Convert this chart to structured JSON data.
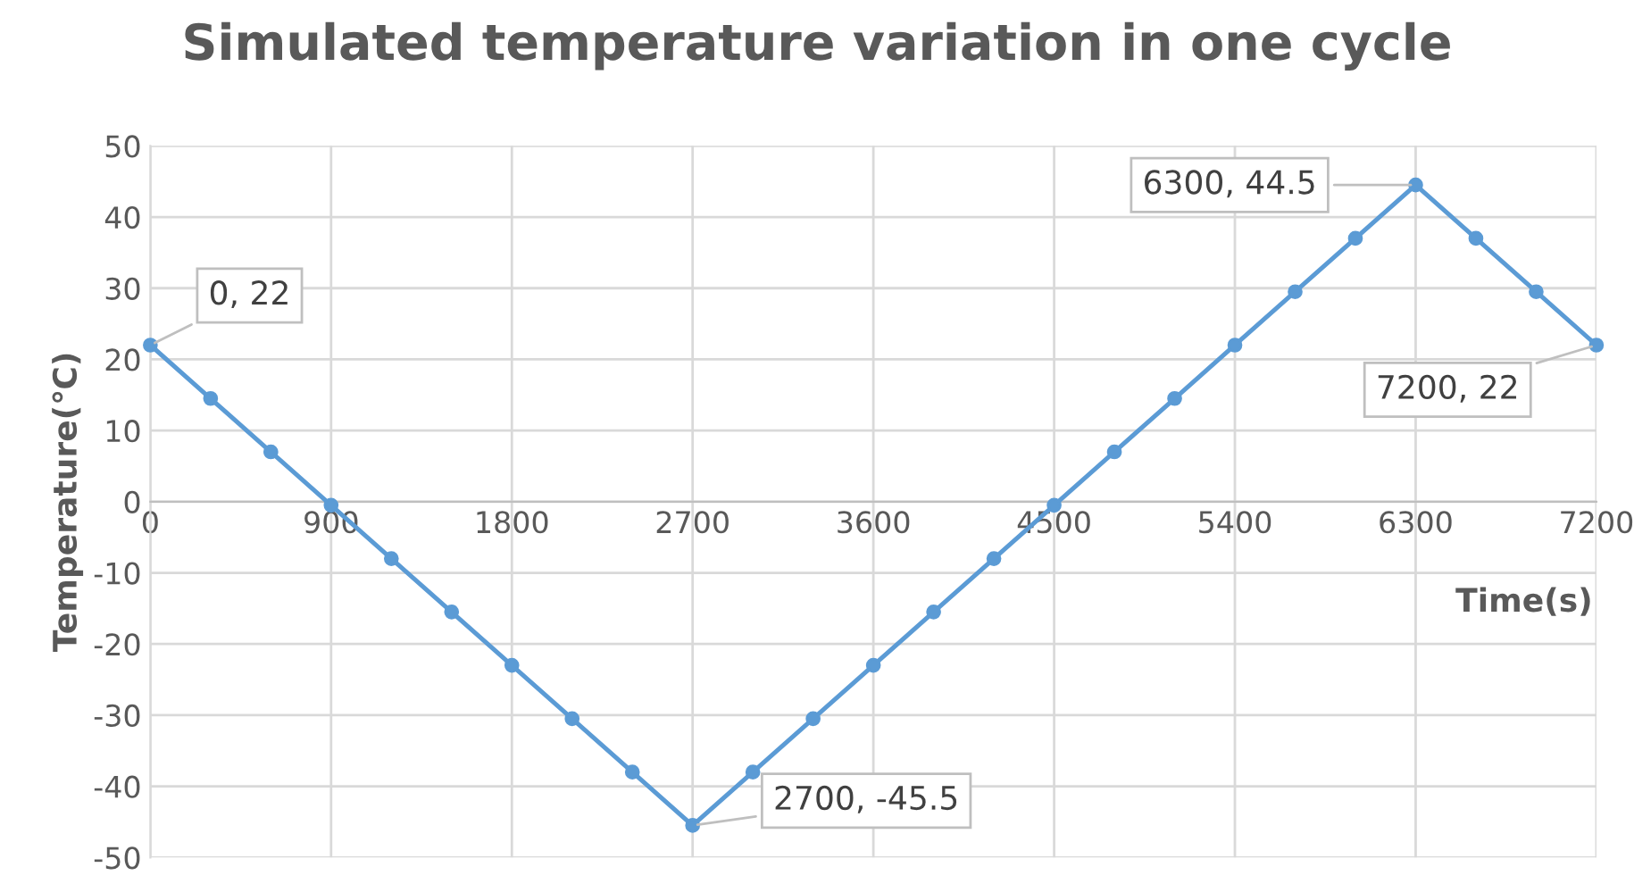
{
  "chart_data": {
    "type": "line",
    "title": "Simulated temperature variation in one cycle",
    "xlabel": "Time(s)",
    "ylabel": "Temperature(℃)",
    "x": [
      0,
      300,
      600,
      900,
      1200,
      1500,
      1800,
      2100,
      2400,
      2700,
      3000,
      3300,
      3600,
      3900,
      4200,
      4500,
      4800,
      5100,
      5400,
      5700,
      6000,
      6300,
      6600,
      6900,
      7200
    ],
    "series": [
      {
        "color": "#5b9bd5",
        "values": [
          22,
          14.5,
          7,
          -0.5,
          -8,
          -15.5,
          -23,
          -30.5,
          -38,
          -45.5,
          -38,
          -30.5,
          -23,
          -15.5,
          -8,
          -0.5,
          7,
          14.5,
          22,
          29.5,
          37,
          44.5,
          37,
          29.5,
          22
        ]
      }
    ],
    "xlim": [
      0,
      7200
    ],
    "xticks": [
      0,
      900,
      1800,
      2700,
      3600,
      4500,
      5400,
      6300,
      7200
    ],
    "ylim": [
      -50,
      50
    ],
    "yticks": [
      -50,
      -40,
      -30,
      -20,
      -10,
      0,
      10,
      20,
      30,
      40,
      50
    ],
    "grid": true,
    "marker": "circle",
    "line_style": "solid",
    "annotations": [
      {
        "text": "0, 22",
        "x": 0,
        "y": 22
      },
      {
        "text": "6300, 44.5",
        "x": 6300,
        "y": 44.5
      },
      {
        "text": "7200, 22",
        "x": 7200,
        "y": 22
      },
      {
        "text": "2700, -45.5",
        "x": 2700,
        "y": -45.5
      }
    ]
  }
}
